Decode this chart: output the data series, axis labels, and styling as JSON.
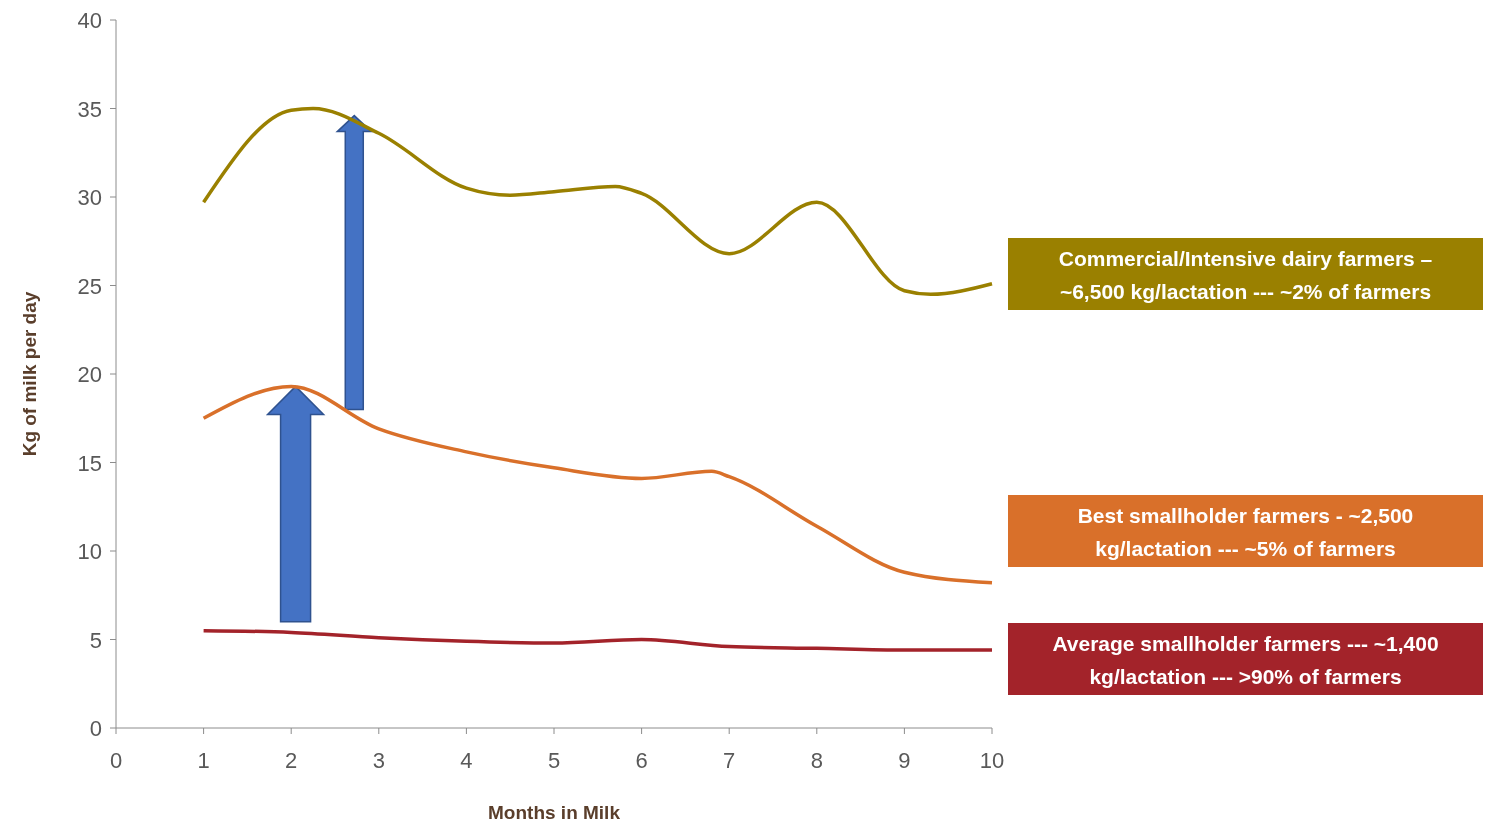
{
  "chart_data": {
    "type": "line",
    "xlabel": "Months in Milk",
    "ylabel": "Kg of milk per day",
    "xlim": [
      0,
      10
    ],
    "xticks": [
      0,
      1,
      2,
      3,
      4,
      5,
      6,
      7,
      8,
      9,
      10
    ],
    "ylim": [
      0,
      40
    ],
    "yticks": [
      0,
      5,
      10,
      15,
      20,
      25,
      30,
      35,
      40
    ],
    "grid": false,
    "legend": "right",
    "marker": "none",
    "line_style": "solid",
    "series": [
      {
        "name": "Commercial/Intensive dairy farmers – ~6,500 kg/lactation --- ~2% of farmers",
        "color": "#9a8000",
        "x": [
          1,
          2,
          2.25,
          3,
          4,
          4.5,
          5,
          5.7,
          6,
          7,
          8,
          9,
          9.3,
          10
        ],
        "values": [
          29.7,
          34.9,
          35.0,
          33.6,
          30.5,
          30.1,
          30.3,
          30.6,
          30.2,
          26.8,
          29.7,
          24.7,
          24.5,
          25.1
        ]
      },
      {
        "name": "Best smallholder farmers - ~2,500 kg/lactation --- ~5% of farmers",
        "color": "#d9702a",
        "x": [
          1,
          2,
          3,
          4,
          5,
          6,
          6.8,
          7,
          8,
          9,
          10
        ],
        "values": [
          17.5,
          19.3,
          16.9,
          15.6,
          14.7,
          14.1,
          14.5,
          14.2,
          11.4,
          8.8,
          8.2
        ]
      },
      {
        "name": "Average smallholder farmers --- ~1,400 kg/lactation --- >90% of farmers",
        "color": "#a3232a",
        "x": [
          1,
          2,
          3,
          4,
          5,
          6,
          7,
          8,
          9,
          10
        ],
        "values": [
          5.5,
          5.4,
          5.1,
          4.9,
          4.8,
          5.0,
          4.6,
          4.5,
          4.4,
          4.4
        ]
      }
    ]
  }
}
